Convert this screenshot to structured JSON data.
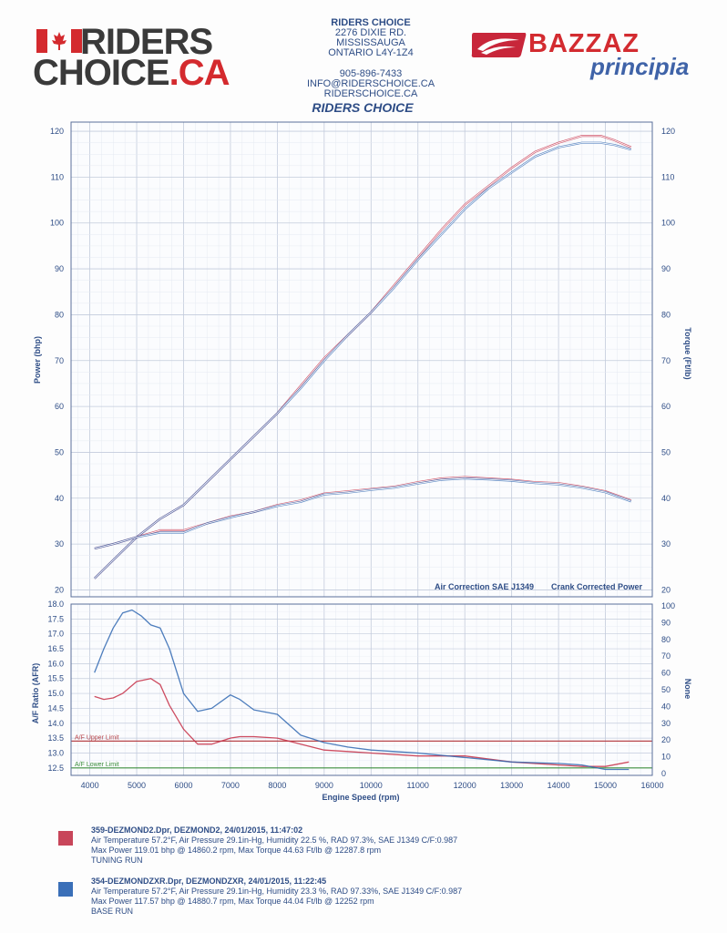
{
  "header": {
    "dealer_logo": {
      "line1": "RIDERS",
      "line2": "CHOICE",
      "suffix": ".CA"
    },
    "dealer_name": "RIDERS CHOICE",
    "address1": "2276 DIXIE RD.",
    "address2": "MISSISSAUGA",
    "address3": "ONTARIO L4Y-1Z4",
    "phone": "905-896-7433",
    "email": "INFO@RIDERSCHOICE.CA",
    "website": "RIDERSCHOICE.CA",
    "brand_logo": {
      "word": "BAZZAZ",
      "sub": "principia"
    }
  },
  "chart_title": "RIDERS CHOICE",
  "colors": {
    "run1": "#c62e45",
    "run2": "#2f67b2",
    "upper_limit": "#b8454a",
    "lower_limit": "#3e8f3e",
    "axis_text": "#2e4d86",
    "grid": "#cfd6e4"
  },
  "chart_data": [
    {
      "type": "line",
      "title": "RIDERS CHOICE",
      "xlabel": "Engine Speed (rpm)",
      "ylabel": "Power (bhp)",
      "ylabel_right": "Torque (Ft/lb)",
      "xlim": [
        3600,
        16000
      ],
      "ylim": [
        18.5,
        122
      ],
      "yticks": [
        20,
        30,
        40,
        50,
        60,
        70,
        80,
        90,
        100,
        110,
        120
      ],
      "annotations": [
        "Air Correction SAE J1349",
        "Crank Corrected Power"
      ],
      "grid": true,
      "series": [
        {
          "name": "359-DEZMOND2.Dpr power",
          "x": [
            4100,
            4500,
            5000,
            5500,
            6000,
            6500,
            7000,
            7500,
            8000,
            8500,
            9000,
            9500,
            10000,
            10500,
            11000,
            11500,
            12000,
            12500,
            13000,
            13500,
            14000,
            14500,
            14900,
            15200,
            15550
          ],
          "y": [
            22.5,
            26.5,
            31.5,
            35.5,
            38.5,
            43.5,
            48.5,
            53.5,
            58.5,
            64.5,
            70.5,
            75.5,
            80.5,
            86.5,
            92.5,
            98.5,
            104,
            108,
            112,
            115.5,
            117.5,
            119,
            119,
            118,
            116.5
          ]
        },
        {
          "name": "354-DEZMONDZXR.Dpr power",
          "x": [
            4100,
            4500,
            5000,
            5500,
            6000,
            6500,
            7000,
            7500,
            8000,
            8500,
            9000,
            9500,
            10000,
            10500,
            11000,
            11500,
            12000,
            12500,
            13000,
            13500,
            14000,
            14500,
            14900,
            15200,
            15550
          ],
          "y": [
            22.5,
            26.5,
            31.5,
            35.5,
            38.5,
            43.5,
            48.5,
            53.5,
            58.5,
            64,
            70,
            75.5,
            80.5,
            86,
            92,
            97.5,
            103,
            107.5,
            111,
            114.5,
            116.5,
            117.5,
            117.5,
            117,
            116
          ]
        },
        {
          "name": "359-DEZMOND2.Dpr torque",
          "x": [
            4100,
            4500,
            5000,
            5500,
            6000,
            6500,
            7000,
            7500,
            8000,
            8500,
            9000,
            9500,
            10000,
            10500,
            11000,
            11500,
            12000,
            12500,
            13000,
            13500,
            14000,
            14500,
            15000,
            15550
          ],
          "y": [
            29,
            30,
            31.5,
            33,
            33,
            34.5,
            36,
            37,
            38.5,
            39.5,
            41,
            41.5,
            42,
            42.5,
            43.5,
            44.3,
            44.6,
            44.3,
            44,
            43.5,
            43.3,
            42.5,
            41.5,
            39.5
          ]
        },
        {
          "name": "354-DEZMONDZXR.Dpr torque",
          "x": [
            4100,
            4500,
            5000,
            5500,
            6000,
            6500,
            7000,
            7500,
            8000,
            8500,
            9000,
            9500,
            10000,
            10500,
            11000,
            11500,
            12000,
            12500,
            13000,
            13500,
            14000,
            14500,
            15000,
            15550
          ],
          "y": [
            29,
            30,
            31.5,
            32.5,
            32.5,
            34.5,
            35.8,
            37,
            38.3,
            39.2,
            40.8,
            41.2,
            41.8,
            42.3,
            43.2,
            44,
            44.3,
            44.1,
            43.8,
            43.3,
            43,
            42.3,
            41.3,
            39.3
          ]
        }
      ]
    },
    {
      "type": "line",
      "xlabel": "Engine Speed (rpm)",
      "ylabel": "A/F Ratio (AFR)",
      "ylabel_right": "None",
      "xlim": [
        3600,
        16000
      ],
      "xticks": [
        4000,
        5000,
        6000,
        7000,
        8000,
        9000,
        10000,
        11000,
        12000,
        13000,
        14000,
        15000,
        16000
      ],
      "ylim": [
        12.25,
        18.0
      ],
      "yticks": [
        12.5,
        13.0,
        13.5,
        14.0,
        14.5,
        15.0,
        15.5,
        16.0,
        16.5,
        17.0,
        17.5,
        18.0
      ],
      "right_ticks": [
        0,
        10,
        20,
        30,
        40,
        50,
        60,
        70,
        80,
        90,
        100
      ],
      "upper_limit": {
        "label": "A/F Upper Limit",
        "value": 13.4
      },
      "lower_limit": {
        "label": "A/F Lower Limit",
        "value": 12.5
      },
      "grid": true,
      "series": [
        {
          "name": "359-DEZMOND2.Dpr AFR",
          "x": [
            4100,
            4300,
            4500,
            4700,
            5000,
            5300,
            5500,
            5700,
            6000,
            6300,
            6600,
            7000,
            7200,
            7500,
            8000,
            8500,
            9000,
            9500,
            10000,
            11000,
            12000,
            13000,
            14000,
            14500,
            15000,
            15500
          ],
          "y": [
            14.9,
            14.8,
            14.85,
            15.0,
            15.4,
            15.5,
            15.3,
            14.6,
            13.8,
            13.3,
            13.3,
            13.5,
            13.55,
            13.55,
            13.5,
            13.3,
            13.1,
            13.05,
            13.0,
            12.9,
            12.9,
            12.7,
            12.6,
            12.55,
            12.55,
            12.7
          ]
        },
        {
          "name": "354-DEZMONDZXR.Dpr AFR",
          "x": [
            4100,
            4300,
            4500,
            4700,
            4900,
            5100,
            5300,
            5500,
            5700,
            6000,
            6300,
            6600,
            7000,
            7200,
            7500,
            8000,
            8500,
            9000,
            9500,
            10000,
            10500,
            11000,
            12000,
            13000,
            14000,
            14500,
            15000,
            15500
          ],
          "y": [
            15.7,
            16.5,
            17.2,
            17.7,
            17.8,
            17.6,
            17.3,
            17.2,
            16.5,
            15.0,
            14.4,
            14.5,
            14.95,
            14.8,
            14.45,
            14.3,
            13.6,
            13.35,
            13.2,
            13.1,
            13.05,
            13.0,
            12.85,
            12.7,
            12.65,
            12.6,
            12.45,
            12.45
          ]
        }
      ]
    }
  ],
  "legend": {
    "run1": {
      "head": "359-DEZMOND2.Dpr,   DEZMOND2,   24/01/2015,   11:47:02",
      "line1": "Air Temperature 57.2°F, Air Pressure 29.1in-Hg, Humidity 22.5 %, RAD 97.3%,   SAE J1349  C/F:0.987",
      "line2": "Max Power 119.01 bhp @ 14860.2 rpm, Max Torque 44.63 Ft/lb @ 12287.8 rpm",
      "line3": "TUNING RUN"
    },
    "run2": {
      "head": "354-DEZMONDZXR.Dpr,   DEZMONDZXR,   24/01/2015,   11:22:45",
      "line1": "Air Temperature 57.2°F, Air Pressure 29.1in-Hg, Humidity 23.3 %, RAD 97.33%,   SAE J1349  C/F:0.987",
      "line2": "Max Power 117.57 bhp @ 14880.7 rpm, Max Torque 44.04 Ft/lb @ 12252 rpm",
      "line3": "BASE RUN"
    }
  }
}
